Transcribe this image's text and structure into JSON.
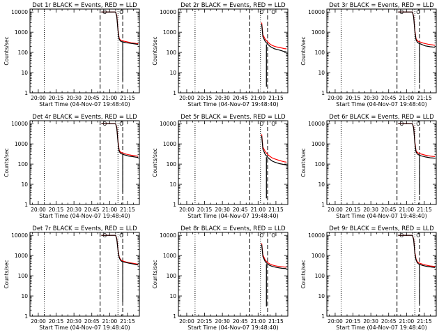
{
  "chart_data": [
    {
      "type": "line",
      "title": "Det 1r BLACK = Events, RED = LLD",
      "xlabel": "Start Time (04-Nov-07 19:48:40)",
      "ylabel": "Counts/sec",
      "ylim": [
        1,
        14000
      ],
      "xlim": [
        "19:53",
        "21:25"
      ],
      "ylog": true,
      "xticks": [
        "20:00",
        "20:15",
        "20:30",
        "20:45",
        "21:00",
        "21:15"
      ],
      "yticks": [
        "1",
        "10",
        "100",
        "1000",
        "10000"
      ],
      "dotted_times": [
        "20:05",
        "21:07"
      ],
      "dashed_times": [
        "20:52",
        "21:11"
      ],
      "markers": [
        {
          "time": "20:53",
          "label": "O"
        },
        {
          "time": "21:07",
          "label": "O"
        }
      ],
      "series": [
        {
          "color": "#000000",
          "x": [
            "20:53",
            "21:05",
            "21:06",
            "21:07",
            "21:08",
            "21:09",
            "21:10",
            "21:12",
            "21:14",
            "21:16",
            "21:18",
            "21:20",
            "21:22",
            "21:24"
          ],
          "y": [
            10000,
            10000,
            6000,
            1200,
            450,
            370,
            340,
            320,
            300,
            290,
            280,
            270,
            260,
            250
          ]
        },
        {
          "color": "#ff0000",
          "x": [
            "20:53",
            "21:05",
            "21:06",
            "21:07",
            "21:08",
            "21:09",
            "21:10",
            "21:12",
            "21:14",
            "21:16",
            "21:18",
            "21:20",
            "21:22",
            "21:24"
          ],
          "y": [
            10000,
            10000,
            6500,
            1400,
            500,
            420,
            390,
            360,
            340,
            320,
            300,
            290,
            280,
            270
          ]
        }
      ],
      "spikes": [
        {
          "time": "21:11",
          "from": 300,
          "to": 4
        }
      ]
    },
    {
      "type": "line",
      "title": "Det 2r BLACK = Events, RED = LLD",
      "xlabel": "Start Time (04-Nov-07 19:48:40)",
      "ylabel": "Counts/sec",
      "ylim": [
        1,
        14000
      ],
      "xlim": [
        "19:53",
        "21:25"
      ],
      "ylog": true,
      "xticks": [
        "20:00",
        "20:15",
        "20:30",
        "20:45",
        "21:00",
        "21:15"
      ],
      "yticks": [
        "1",
        "10",
        "100",
        "1000",
        "10000"
      ],
      "dotted_times": [
        "20:07",
        "21:02"
      ],
      "dashed_times": [
        "20:53",
        "21:08"
      ],
      "markers": [
        {
          "time": "21:00",
          "label": "O"
        },
        {
          "time": "21:10",
          "label": "O"
        }
      ],
      "series": [
        {
          "color": "#000000",
          "x": [
            "21:03",
            "21:04",
            "21:06",
            "21:08",
            "21:10",
            "21:12",
            "21:14",
            "21:16",
            "21:18",
            "21:20",
            "21:22",
            "21:24"
          ],
          "y": [
            2500,
            600,
            350,
            260,
            200,
            170,
            150,
            140,
            130,
            120,
            110,
            105
          ]
        },
        {
          "color": "#ff0000",
          "x": [
            "21:03",
            "21:04",
            "21:06",
            "21:08",
            "21:10",
            "21:12",
            "21:14",
            "21:16",
            "21:18",
            "21:20",
            "21:22",
            "21:24"
          ],
          "y": [
            3000,
            750,
            450,
            330,
            260,
            220,
            200,
            185,
            175,
            165,
            155,
            150
          ]
        }
      ],
      "spikes": [
        {
          "time": "21:07",
          "from": 250,
          "to": 2
        }
      ]
    },
    {
      "type": "line",
      "title": "Det 3r BLACK = Events, RED = LLD",
      "xlabel": "Start Time (04-Nov-07 19:48:40)",
      "ylabel": "Counts/sec",
      "ylim": [
        1,
        14000
      ],
      "xlim": [
        "19:53",
        "21:25"
      ],
      "ylog": true,
      "xticks": [
        "20:00",
        "20:15",
        "20:30",
        "20:45",
        "21:00",
        "21:15"
      ],
      "yticks": [
        "1",
        "10",
        "100",
        "1000",
        "10000"
      ],
      "dotted_times": [
        "20:05",
        "21:07"
      ],
      "dashed_times": [
        "20:52",
        "21:11"
      ],
      "markers": [
        {
          "time": "20:53",
          "label": "O"
        },
        {
          "time": "21:07",
          "label": "O"
        }
      ],
      "series": [
        {
          "color": "#000000",
          "x": [
            "20:53",
            "21:05",
            "21:06",
            "21:07",
            "21:08",
            "21:09",
            "21:10",
            "21:12",
            "21:14",
            "21:16",
            "21:18",
            "21:20",
            "21:22",
            "21:24"
          ],
          "y": [
            10000,
            10000,
            5500,
            1100,
            420,
            330,
            290,
            260,
            230,
            210,
            200,
            190,
            185,
            180
          ]
        },
        {
          "color": "#ff0000",
          "x": [
            "20:53",
            "21:05",
            "21:06",
            "21:07",
            "21:08",
            "21:09",
            "21:10",
            "21:12",
            "21:14",
            "21:16",
            "21:18",
            "21:20",
            "21:22",
            "21:24"
          ],
          "y": [
            10000,
            10000,
            6000,
            1300,
            480,
            390,
            350,
            320,
            290,
            270,
            255,
            245,
            235,
            225
          ]
        }
      ],
      "spikes": [
        {
          "time": "21:11",
          "from": 260,
          "to": 3
        }
      ]
    },
    {
      "type": "line",
      "title": "Det 4r BLACK = Events, RED = LLD",
      "xlabel": "Start Time (04-Nov-07 19:48:40)",
      "ylabel": "Counts/sec",
      "ylim": [
        1,
        14000
      ],
      "xlim": [
        "19:53",
        "21:25"
      ],
      "ylog": true,
      "xticks": [
        "20:00",
        "20:15",
        "20:30",
        "20:45",
        "21:00",
        "21:15"
      ],
      "yticks": [
        "1",
        "10",
        "100",
        "1000",
        "10000"
      ],
      "dotted_times": [
        "20:05",
        "21:07"
      ],
      "dashed_times": [
        "20:52",
        "21:11"
      ],
      "markers": [
        {
          "time": "20:53",
          "label": "O"
        },
        {
          "time": "21:07",
          "label": "O"
        }
      ],
      "series": [
        {
          "color": "#000000",
          "x": [
            "20:53",
            "21:05",
            "21:06",
            "21:07",
            "21:08",
            "21:09",
            "21:10",
            "21:12",
            "21:14",
            "21:16",
            "21:18",
            "21:20",
            "21:22",
            "21:24"
          ],
          "y": [
            10000,
            10000,
            6000,
            1200,
            430,
            350,
            320,
            290,
            270,
            250,
            240,
            230,
            220,
            215
          ]
        },
        {
          "color": "#ff0000",
          "x": [
            "20:53",
            "21:05",
            "21:06",
            "21:07",
            "21:08",
            "21:09",
            "21:10",
            "21:12",
            "21:14",
            "21:16",
            "21:18",
            "21:20",
            "21:22",
            "21:24"
          ],
          "y": [
            10000,
            10000,
            6500,
            1400,
            490,
            400,
            370,
            340,
            310,
            290,
            275,
            265,
            255,
            245
          ]
        }
      ],
      "spikes": [
        {
          "time": "21:11",
          "from": 280,
          "to": 4
        }
      ]
    },
    {
      "type": "line",
      "title": "Det 5r BLACK = Events, RED = LLD",
      "xlabel": "Start Time (04-Nov-07 19:48:40)",
      "ylabel": "Counts/sec",
      "ylim": [
        1,
        14000
      ],
      "xlim": [
        "19:53",
        "21:25"
      ],
      "ylog": true,
      "xticks": [
        "20:00",
        "20:15",
        "20:30",
        "20:45",
        "21:00",
        "21:15"
      ],
      "yticks": [
        "1",
        "10",
        "100",
        "1000",
        "10000"
      ],
      "dotted_times": [
        "20:07",
        "21:02"
      ],
      "dashed_times": [
        "20:53",
        "21:08"
      ],
      "markers": [
        {
          "time": "21:00",
          "label": "O"
        },
        {
          "time": "21:10",
          "label": "O"
        }
      ],
      "series": [
        {
          "color": "#000000",
          "x": [
            "21:03",
            "21:04",
            "21:06",
            "21:08",
            "21:10",
            "21:12",
            "21:14",
            "21:16",
            "21:18",
            "21:20",
            "21:22",
            "21:24"
          ],
          "y": [
            2500,
            550,
            300,
            220,
            170,
            140,
            125,
            115,
            105,
            100,
            95,
            90
          ]
        },
        {
          "color": "#ff0000",
          "x": [
            "21:03",
            "21:04",
            "21:06",
            "21:08",
            "21:10",
            "21:12",
            "21:14",
            "21:16",
            "21:18",
            "21:20",
            "21:22",
            "21:24"
          ],
          "y": [
            3000,
            700,
            420,
            300,
            240,
            200,
            180,
            165,
            150,
            140,
            130,
            125
          ]
        }
      ],
      "spikes": [
        {
          "time": "21:07",
          "from": 220,
          "to": 2
        }
      ]
    },
    {
      "type": "line",
      "title": "Det 6r BLACK = Events, RED = LLD",
      "xlabel": "Start Time (04-Nov-07 19:48:40)",
      "ylabel": "Counts/sec",
      "ylim": [
        1,
        14000
      ],
      "xlim": [
        "19:53",
        "21:25"
      ],
      "ylog": true,
      "xticks": [
        "20:00",
        "20:15",
        "20:30",
        "20:45",
        "21:00",
        "21:15"
      ],
      "yticks": [
        "1",
        "10",
        "100",
        "1000",
        "10000"
      ],
      "dotted_times": [
        "20:05",
        "21:07"
      ],
      "dashed_times": [
        "20:52",
        "21:11"
      ],
      "markers": [
        {
          "time": "20:53",
          "label": "O"
        },
        {
          "time": "21:07",
          "label": "O"
        }
      ],
      "series": [
        {
          "color": "#000000",
          "x": [
            "20:53",
            "21:05",
            "21:06",
            "21:07",
            "21:08",
            "21:09",
            "21:10",
            "21:12",
            "21:14",
            "21:16",
            "21:18",
            "21:20",
            "21:22",
            "21:24"
          ],
          "y": [
            10000,
            10000,
            6000,
            1100,
            400,
            320,
            290,
            260,
            240,
            225,
            215,
            205,
            200,
            195
          ]
        },
        {
          "color": "#ff0000",
          "x": [
            "20:53",
            "21:05",
            "21:06",
            "21:07",
            "21:08",
            "21:09",
            "21:10",
            "21:12",
            "21:14",
            "21:16",
            "21:18",
            "21:20",
            "21:22",
            "21:24"
          ],
          "y": [
            10000,
            10000,
            6500,
            1300,
            460,
            380,
            350,
            320,
            295,
            275,
            260,
            250,
            240,
            235
          ]
        }
      ],
      "spikes": [
        {
          "time": "21:11",
          "from": 260,
          "to": 3
        }
      ]
    },
    {
      "type": "line",
      "title": "Det 7r BLACK = Events, RED = LLD",
      "xlabel": "Start Time (04-Nov-07 19:48:40)",
      "ylabel": "Counts/sec",
      "ylim": [
        1,
        14000
      ],
      "xlim": [
        "19:53",
        "21:25"
      ],
      "ylog": true,
      "xticks": [
        "20:00",
        "20:15",
        "20:30",
        "20:45",
        "21:00",
        "21:15"
      ],
      "yticks": [
        "1",
        "10",
        "100",
        "1000",
        "10000"
      ],
      "dotted_times": [
        "20:05",
        "21:07"
      ],
      "dashed_times": [
        "20:52",
        "21:11"
      ],
      "markers": [
        {
          "time": "20:53",
          "label": "O"
        },
        {
          "time": "21:07",
          "label": "O"
        }
      ],
      "series": [
        {
          "color": "#000000",
          "x": [
            "20:53",
            "21:05",
            "21:06",
            "21:07",
            "21:08",
            "21:09",
            "21:10",
            "21:12",
            "21:14",
            "21:16",
            "21:18",
            "21:20",
            "21:22",
            "21:24"
          ],
          "y": [
            10000,
            10000,
            6500,
            1800,
            800,
            600,
            520,
            480,
            450,
            420,
            400,
            380,
            360,
            340
          ]
        },
        {
          "color": "#ff0000",
          "x": [
            "20:53",
            "21:05",
            "21:06",
            "21:07",
            "21:08",
            "21:09",
            "21:10",
            "21:12",
            "21:14",
            "21:16",
            "21:18",
            "21:20",
            "21:22",
            "21:24"
          ],
          "y": [
            10000,
            10000,
            7000,
            2000,
            880,
            660,
            570,
            520,
            480,
            450,
            430,
            410,
            390,
            370
          ]
        }
      ],
      "spikes": [
        {
          "time": "21:11",
          "from": 480,
          "to": 5
        }
      ]
    },
    {
      "type": "line",
      "title": "Det 8r BLACK = Events, RED = LLD",
      "xlabel": "Start Time (04-Nov-07 19:48:40)",
      "ylabel": "Counts/sec",
      "ylim": [
        1,
        14000
      ],
      "xlim": [
        "19:53",
        "21:25"
      ],
      "ylog": true,
      "xticks": [
        "20:00",
        "20:15",
        "20:30",
        "20:45",
        "21:00",
        "21:15"
      ],
      "yticks": [
        "1",
        "10",
        "100",
        "1000",
        "10000"
      ],
      "dotted_times": [
        "20:07",
        "21:02"
      ],
      "dashed_times": [
        "20:53",
        "21:08"
      ],
      "markers": [
        {
          "time": "21:00",
          "label": "O"
        },
        {
          "time": "21:10",
          "label": "O"
        }
      ],
      "series": [
        {
          "color": "#000000",
          "x": [
            "21:03",
            "21:04",
            "21:06",
            "21:08",
            "21:10",
            "21:12",
            "21:14",
            "21:16",
            "21:18",
            "21:20",
            "21:22",
            "21:24"
          ],
          "y": [
            3500,
            900,
            500,
            380,
            320,
            290,
            270,
            255,
            245,
            235,
            230,
            225
          ]
        },
        {
          "color": "#ff0000",
          "x": [
            "21:03",
            "21:04",
            "21:06",
            "21:08",
            "21:10",
            "21:12",
            "21:14",
            "21:16",
            "21:18",
            "21:20",
            "21:22",
            "21:24"
          ],
          "y": [
            4000,
            1100,
            600,
            450,
            380,
            340,
            315,
            300,
            290,
            280,
            270,
            265
          ]
        }
      ],
      "spikes": [
        {
          "time": "21:07",
          "from": 380,
          "to": 3
        }
      ]
    },
    {
      "type": "line",
      "title": "Det 9r BLACK = Events, RED = LLD",
      "xlabel": "Start Time (04-Nov-07 19:48:40)",
      "ylabel": "Counts/sec",
      "ylim": [
        1,
        14000
      ],
      "xlim": [
        "19:53",
        "21:25"
      ],
      "ylog": true,
      "xticks": [
        "20:00",
        "20:15",
        "20:30",
        "20:45",
        "21:00",
        "21:15"
      ],
      "yticks": [
        "1",
        "10",
        "100",
        "1000",
        "10000"
      ],
      "dotted_times": [
        "20:05",
        "21:07"
      ],
      "dashed_times": [
        "20:52",
        "21:11"
      ],
      "markers": [
        {
          "time": "20:53",
          "label": "O"
        },
        {
          "time": "21:07",
          "label": "O"
        }
      ],
      "series": [
        {
          "color": "#000000",
          "x": [
            "20:53",
            "21:05",
            "21:06",
            "21:07",
            "21:08",
            "21:09",
            "21:10",
            "21:12",
            "21:14",
            "21:16",
            "21:18",
            "21:20",
            "21:22",
            "21:24"
          ],
          "y": [
            10000,
            10000,
            6000,
            1300,
            600,
            450,
            390,
            350,
            320,
            300,
            285,
            275,
            265,
            255
          ]
        },
        {
          "color": "#ff0000",
          "x": [
            "20:53",
            "21:05",
            "21:06",
            "21:07",
            "21:08",
            "21:09",
            "21:10",
            "21:12",
            "21:14",
            "21:16",
            "21:18",
            "21:20",
            "21:22",
            "21:24"
          ],
          "y": [
            10000,
            10000,
            6500,
            1500,
            680,
            510,
            440,
            400,
            365,
            340,
            320,
            305,
            295,
            285
          ]
        }
      ],
      "spikes": [
        {
          "time": "21:11",
          "from": 350,
          "to": 4
        }
      ]
    }
  ]
}
